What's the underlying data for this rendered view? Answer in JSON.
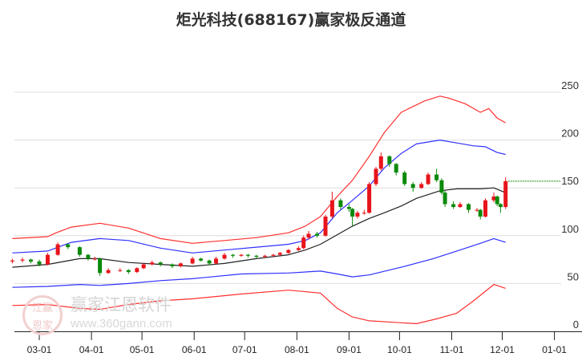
{
  "chart_data": {
    "type": "candlestick",
    "title": "炬光科技(688167)赢家极反通道",
    "xlabel": "",
    "ylabel": "",
    "ylim": [
      0,
      250
    ],
    "yticks": [
      0,
      50,
      100,
      150,
      200,
      250
    ],
    "xticks": [
      "03-01",
      "04-01",
      "05-01",
      "06-01",
      "07-01",
      "08-01",
      "09-01",
      "10-01",
      "11-01",
      "12-01",
      "01-01"
    ],
    "grid": true,
    "last_price": 157,
    "colors": {
      "up": "#e8141b",
      "down": "#0a8a0a",
      "upper_outer": "#ff3030",
      "upper_inner": "#3030ff",
      "middle": "#222222",
      "lower_inner": "#3030ff",
      "lower_outer": "#ff3030",
      "last_line": "#0a8a0a",
      "grid": "#dddddd"
    },
    "candles": [
      [
        "02-14",
        73,
        76,
        71,
        74
      ],
      [
        "02-20",
        74,
        77,
        72,
        75
      ],
      [
        "02-25",
        75,
        76,
        71,
        73
      ],
      [
        "03-01",
        73,
        75,
        68,
        70
      ],
      [
        "03-06",
        70,
        82,
        69,
        80
      ],
      [
        "03-12",
        80,
        93,
        79,
        91
      ],
      [
        "03-18",
        91,
        92,
        86,
        88
      ],
      [
        "03-25",
        88,
        89,
        78,
        80
      ],
      [
        "03-30",
        80,
        81,
        74,
        76
      ],
      [
        "04-03",
        76,
        78,
        74,
        76
      ],
      [
        "04-06",
        76,
        77,
        58,
        61
      ],
      [
        "04-11",
        61,
        66,
        60,
        64
      ],
      [
        "04-18",
        64,
        66,
        62,
        64
      ],
      [
        "04-23",
        64,
        65,
        60,
        62
      ],
      [
        "04-28",
        62,
        67,
        61,
        66
      ],
      [
        "05-02",
        66,
        71,
        65,
        70
      ],
      [
        "05-07",
        70,
        74,
        69,
        72
      ],
      [
        "05-12",
        72,
        73,
        68,
        70
      ],
      [
        "05-19",
        70,
        71,
        66,
        68
      ],
      [
        "05-24",
        68,
        72,
        67,
        71
      ],
      [
        "05-31",
        71,
        78,
        70,
        76
      ],
      [
        "06-05",
        76,
        77,
        73,
        74
      ],
      [
        "06-10",
        74,
        75,
        69,
        71
      ],
      [
        "06-14",
        71,
        78,
        70,
        76
      ],
      [
        "06-19",
        76,
        82,
        75,
        80
      ],
      [
        "06-24",
        80,
        81,
        77,
        79
      ],
      [
        "06-29",
        79,
        81,
        78,
        80
      ],
      [
        "07-03",
        80,
        81,
        77,
        79
      ],
      [
        "07-08",
        79,
        80,
        76,
        78
      ],
      [
        "07-13",
        78,
        80,
        77,
        79
      ],
      [
        "07-18",
        79,
        81,
        78,
        80
      ],
      [
        "07-22",
        80,
        83,
        79,
        82
      ],
      [
        "07-27",
        82,
        86,
        81,
        85
      ],
      [
        "08-02",
        85,
        89,
        84,
        87
      ],
      [
        "08-05",
        87,
        100,
        86,
        98
      ],
      [
        "08-08",
        98,
        105,
        96,
        102
      ],
      [
        "08-13",
        102,
        104,
        98,
        100
      ],
      [
        "08-18",
        100,
        122,
        99,
        120
      ],
      [
        "08-22",
        120,
        146,
        118,
        137
      ],
      [
        "08-27",
        137,
        139,
        127,
        130
      ],
      [
        "09-01",
        130,
        133,
        125,
        128
      ],
      [
        "09-03",
        128,
        129,
        110,
        120
      ],
      [
        "09-06",
        120,
        126,
        118,
        124
      ],
      [
        "09-10",
        124,
        127,
        122,
        124
      ],
      [
        "09-13",
        124,
        156,
        123,
        154
      ],
      [
        "09-17",
        154,
        172,
        152,
        170
      ],
      [
        "09-20",
        170,
        187,
        168,
        183
      ],
      [
        "09-25",
        183,
        184,
        172,
        175
      ],
      [
        "09-29",
        175,
        176,
        163,
        166
      ],
      [
        "10-04",
        166,
        168,
        152,
        154
      ],
      [
        "10-09",
        154,
        156,
        146,
        150
      ],
      [
        "10-14",
        150,
        156,
        149,
        154
      ],
      [
        "10-18",
        154,
        166,
        153,
        164
      ],
      [
        "10-23",
        164,
        170,
        156,
        158
      ],
      [
        "10-26",
        158,
        160,
        143,
        145
      ],
      [
        "10-28",
        145,
        147,
        130,
        133
      ],
      [
        "11-02",
        133,
        136,
        128,
        130
      ],
      [
        "11-06",
        130,
        135,
        129,
        133
      ],
      [
        "11-11",
        133,
        134,
        124,
        127
      ],
      [
        "11-16",
        127,
        129,
        125,
        127
      ],
      [
        "11-18",
        127,
        128,
        117,
        120
      ],
      [
        "11-21",
        120,
        139,
        119,
        137
      ],
      [
        "11-26",
        137,
        145,
        135,
        141
      ],
      [
        "11-28",
        141,
        142,
        131,
        133
      ],
      [
        "11-30",
        133,
        134,
        124,
        130
      ],
      [
        "12-03",
        130,
        161,
        128,
        157
      ]
    ],
    "series": [
      {
        "name": "upper_outer",
        "points": [
          [
            "02-14",
            97
          ],
          [
            "03-06",
            99
          ],
          [
            "03-11",
            103
          ],
          [
            "03-20",
            109
          ],
          [
            "04-06",
            113
          ],
          [
            "04-23",
            108
          ],
          [
            "05-12",
            97
          ],
          [
            "05-31",
            92
          ],
          [
            "06-19",
            95
          ],
          [
            "07-08",
            98
          ],
          [
            "07-27",
            103
          ],
          [
            "08-06",
            110
          ],
          [
            "08-15",
            120
          ],
          [
            "08-25",
            141
          ],
          [
            "09-03",
            158
          ],
          [
            "09-13",
            183
          ],
          [
            "09-22",
            208
          ],
          [
            "10-02",
            229
          ],
          [
            "10-16",
            241
          ],
          [
            "10-25",
            246
          ],
          [
            "10-30",
            244
          ],
          [
            "11-09",
            238
          ],
          [
            "11-18",
            229
          ],
          [
            "11-23",
            233
          ],
          [
            "11-28",
            223
          ],
          [
            "12-03",
            218
          ]
        ]
      },
      {
        "name": "upper_inner",
        "points": [
          [
            "02-14",
            82
          ],
          [
            "03-06",
            84
          ],
          [
            "03-20",
            93
          ],
          [
            "04-06",
            97
          ],
          [
            "04-23",
            95
          ],
          [
            "05-12",
            87
          ],
          [
            "05-31",
            82
          ],
          [
            "06-19",
            85
          ],
          [
            "07-08",
            88
          ],
          [
            "07-27",
            91
          ],
          [
            "08-06",
            95
          ],
          [
            "08-15",
            103
          ],
          [
            "08-25",
            124
          ],
          [
            "09-03",
            137
          ],
          [
            "09-13",
            152
          ],
          [
            "09-22",
            171
          ],
          [
            "10-02",
            186
          ],
          [
            "10-11",
            196
          ],
          [
            "10-25",
            200
          ],
          [
            "11-04",
            197
          ],
          [
            "11-14",
            194
          ],
          [
            "11-21",
            193
          ],
          [
            "11-28",
            187
          ],
          [
            "12-03",
            185
          ]
        ]
      },
      {
        "name": "middle",
        "points": [
          [
            "02-14",
            67
          ],
          [
            "03-06",
            70
          ],
          [
            "03-25",
            76
          ],
          [
            "04-06",
            76
          ],
          [
            "04-23",
            72
          ],
          [
            "05-12",
            70
          ],
          [
            "05-31",
            68
          ],
          [
            "06-19",
            71
          ],
          [
            "07-08",
            76
          ],
          [
            "07-27",
            80
          ],
          [
            "08-06",
            85
          ],
          [
            "08-15",
            91
          ],
          [
            "08-25",
            101
          ],
          [
            "09-03",
            110
          ],
          [
            "09-13",
            118
          ],
          [
            "09-22",
            124
          ],
          [
            "10-02",
            131
          ],
          [
            "10-11",
            139
          ],
          [
            "10-25",
            147
          ],
          [
            "11-04",
            149
          ],
          [
            "11-18",
            149
          ],
          [
            "11-26",
            150
          ],
          [
            "12-03",
            145
          ]
        ]
      },
      {
        "name": "lower_inner",
        "points": [
          [
            "02-14",
            46
          ],
          [
            "03-06",
            47
          ],
          [
            "03-25",
            49
          ],
          [
            "04-06",
            48
          ],
          [
            "04-23",
            50
          ],
          [
            "05-12",
            53
          ],
          [
            "05-31",
            55
          ],
          [
            "06-29",
            60
          ],
          [
            "07-27",
            61
          ],
          [
            "08-15",
            63
          ],
          [
            "08-25",
            60
          ],
          [
            "09-03",
            57
          ],
          [
            "09-13",
            59
          ],
          [
            "10-02",
            67
          ],
          [
            "10-21",
            76
          ],
          [
            "11-04",
            84
          ],
          [
            "11-18",
            92
          ],
          [
            "11-26",
            97
          ],
          [
            "12-03",
            93
          ]
        ]
      },
      {
        "name": "lower_outer",
        "points": [
          [
            "02-14",
            27
          ],
          [
            "03-06",
            28
          ],
          [
            "03-25",
            24
          ],
          [
            "04-06",
            23
          ],
          [
            "04-23",
            28
          ],
          [
            "05-12",
            32
          ],
          [
            "05-31",
            34
          ],
          [
            "06-29",
            39
          ],
          [
            "07-27",
            43
          ],
          [
            "08-15",
            40
          ],
          [
            "08-25",
            24
          ],
          [
            "09-03",
            15
          ],
          [
            "09-13",
            11
          ],
          [
            "10-02",
            9
          ],
          [
            "10-11",
            8
          ],
          [
            "10-23",
            13
          ],
          [
            "11-04",
            19
          ],
          [
            "11-14",
            32
          ],
          [
            "11-26",
            49
          ],
          [
            "12-03",
            45
          ]
        ]
      }
    ]
  },
  "watermark": {
    "seal": "江赢恩家",
    "name": "赢家江恩软件",
    "url": "www.360gann.com"
  }
}
